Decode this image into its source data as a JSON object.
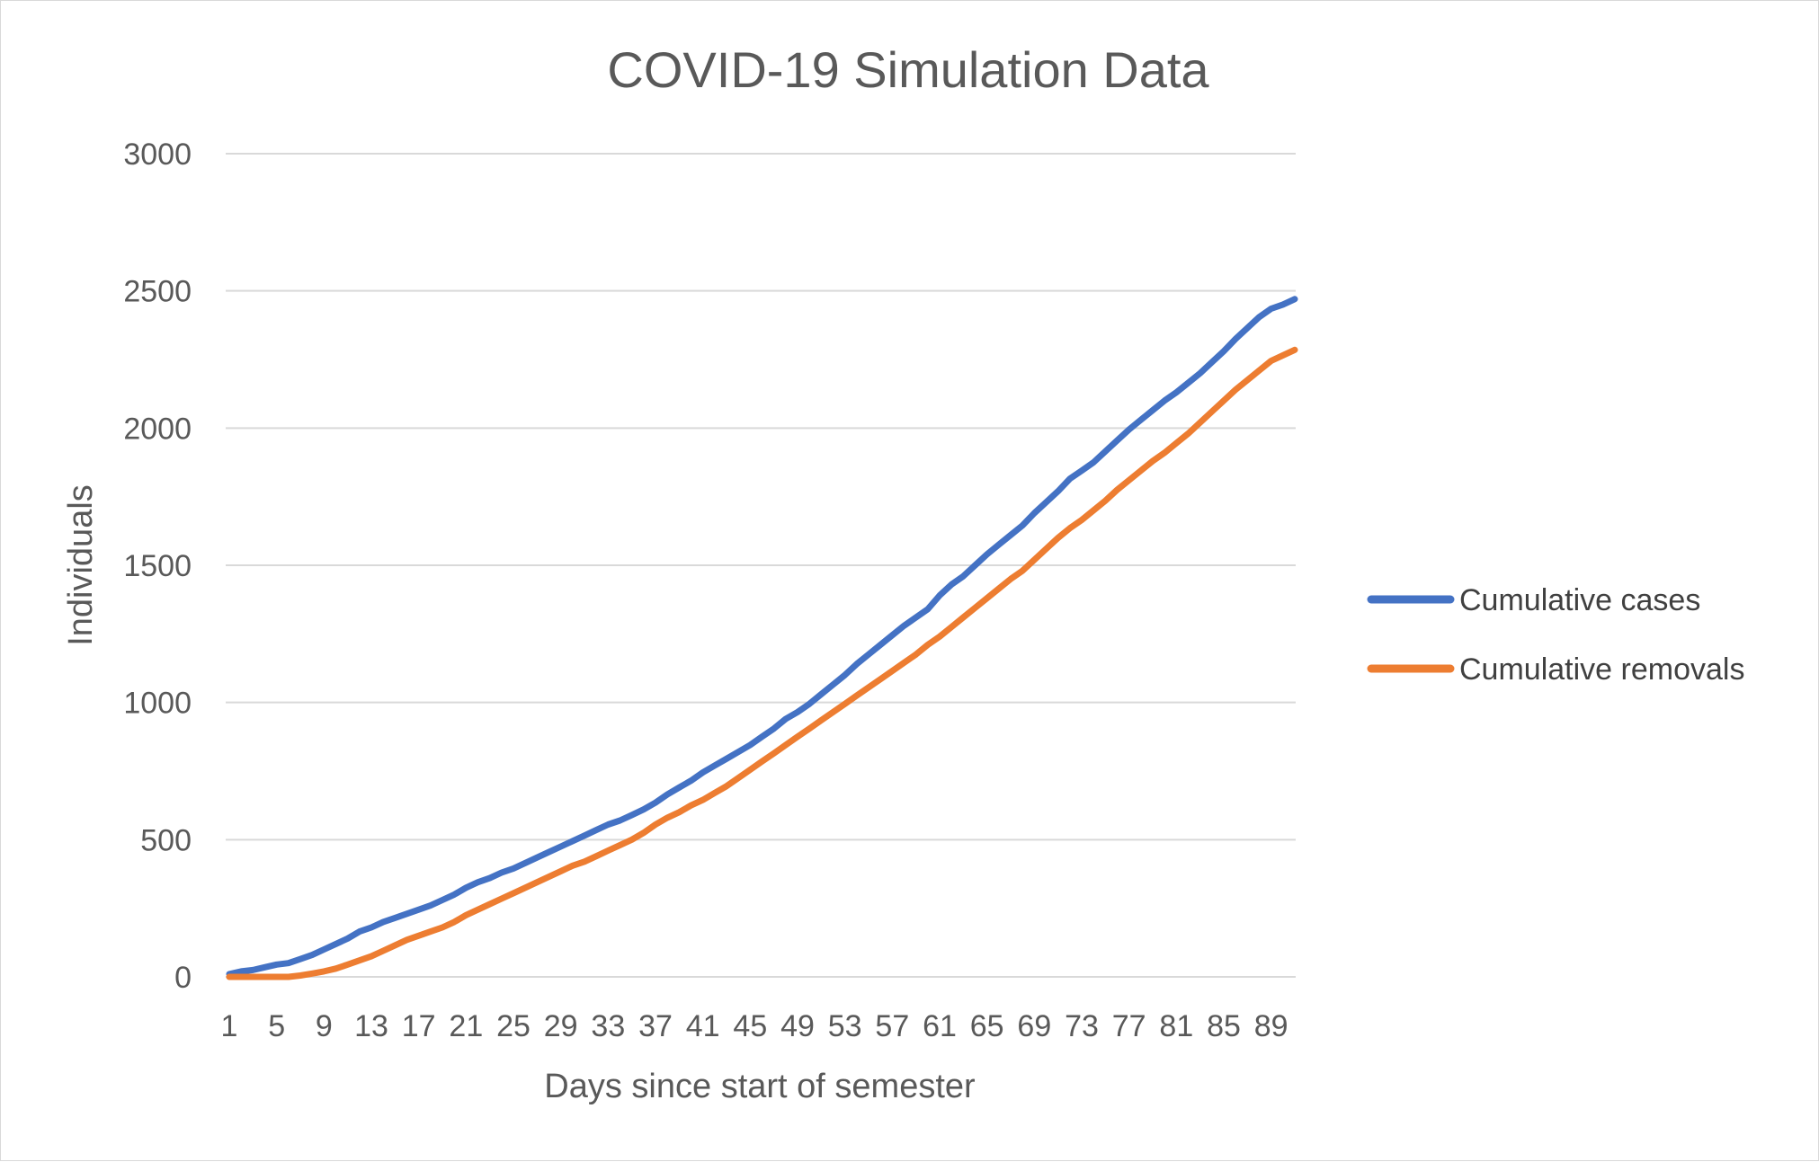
{
  "chart_data": {
    "type": "line",
    "title": "COVID-19 Simulation Data",
    "xlabel": "Days since start of semester",
    "ylabel": "Individuals",
    "xlim": [
      1,
      91
    ],
    "ylim": [
      0,
      3000
    ],
    "yticks": [
      0,
      500,
      1000,
      1500,
      2000,
      2500,
      3000
    ],
    "xticks": [
      1,
      5,
      9,
      13,
      17,
      21,
      25,
      29,
      33,
      37,
      41,
      45,
      49,
      53,
      57,
      61,
      65,
      69,
      73,
      77,
      81,
      85,
      89
    ],
    "grid": true,
    "legend_position": "right",
    "x": [
      1,
      2,
      3,
      4,
      5,
      6,
      7,
      8,
      9,
      10,
      11,
      12,
      13,
      14,
      15,
      16,
      17,
      18,
      19,
      20,
      21,
      22,
      23,
      24,
      25,
      26,
      27,
      28,
      29,
      30,
      31,
      32,
      33,
      34,
      35,
      36,
      37,
      38,
      39,
      40,
      41,
      42,
      43,
      44,
      45,
      46,
      47,
      48,
      49,
      50,
      51,
      52,
      53,
      54,
      55,
      56,
      57,
      58,
      59,
      60,
      61,
      62,
      63,
      64,
      65,
      66,
      67,
      68,
      69,
      70,
      71,
      72,
      73,
      74,
      75,
      76,
      77,
      78,
      79,
      80,
      81,
      82,
      83,
      84,
      85,
      86,
      87,
      88,
      89,
      90,
      91
    ],
    "series": [
      {
        "name": "Cumulative cases",
        "color": "#4472C4",
        "values": [
          10,
          20,
          25,
          35,
          45,
          50,
          65,
          80,
          100,
          120,
          140,
          165,
          180,
          200,
          215,
          230,
          245,
          260,
          280,
          300,
          325,
          345,
          360,
          380,
          395,
          415,
          435,
          455,
          475,
          495,
          515,
          535,
          555,
          570,
          590,
          610,
          635,
          665,
          690,
          715,
          745,
          770,
          795,
          820,
          845,
          875,
          905,
          940,
          965,
          995,
          1030,
          1065,
          1100,
          1140,
          1175,
          1210,
          1245,
          1280,
          1310,
          1340,
          1390,
          1430,
          1460,
          1500,
          1540,
          1575,
          1610,
          1645,
          1690,
          1730,
          1770,
          1815,
          1845,
          1875,
          1915,
          1955,
          1995,
          2030,
          2065,
          2100,
          2130,
          2165,
          2200,
          2240,
          2280,
          2325,
          2365,
          2405,
          2435,
          2450,
          2470
        ]
      },
      {
        "name": "Cumulative removals",
        "color": "#ED7D31",
        "values": [
          0,
          0,
          0,
          0,
          0,
          0,
          5,
          12,
          20,
          30,
          45,
          60,
          75,
          95,
          115,
          135,
          150,
          165,
          180,
          200,
          225,
          245,
          265,
          285,
          305,
          325,
          345,
          365,
          385,
          405,
          420,
          440,
          460,
          480,
          500,
          525,
          555,
          580,
          600,
          625,
          645,
          670,
          695,
          725,
          755,
          785,
          815,
          845,
          875,
          905,
          935,
          965,
          995,
          1025,
          1055,
          1085,
          1115,
          1145,
          1175,
          1210,
          1240,
          1275,
          1310,
          1345,
          1380,
          1415,
          1450,
          1480,
          1520,
          1560,
          1600,
          1635,
          1665,
          1700,
          1735,
          1775,
          1810,
          1845,
          1880,
          1910,
          1945,
          1980,
          2020,
          2060,
          2100,
          2140,
          2175,
          2210,
          2245,
          2265,
          2285
        ]
      }
    ]
  }
}
